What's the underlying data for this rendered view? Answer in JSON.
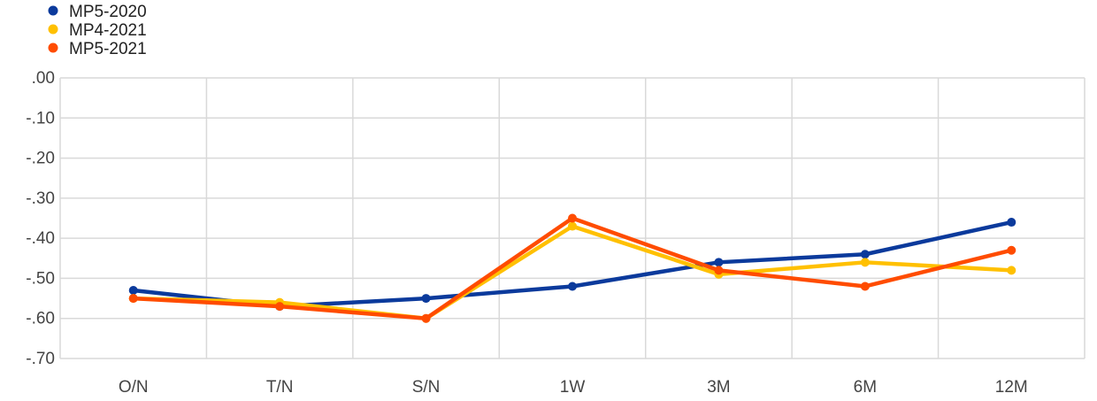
{
  "chart_data": {
    "type": "line",
    "title": "",
    "xlabel": "",
    "ylabel": "",
    "categories": [
      "O/N",
      "T/N",
      "S/N",
      "1W",
      "3M",
      "6M",
      "12M"
    ],
    "y_ticks": [
      ".00",
      "-.10",
      "-.20",
      "-.30",
      "-.40",
      "-.50",
      "-.60",
      "-.70"
    ],
    "ylim": [
      -0.7,
      0.0
    ],
    "grid": true,
    "legend_position": "top-left",
    "series": [
      {
        "name": "MP5-2020",
        "color": "#0b3a9c",
        "values": [
          -0.53,
          -0.57,
          -0.55,
          -0.52,
          -0.46,
          -0.44,
          -0.36
        ]
      },
      {
        "name": "MP4-2021",
        "color": "#ffc000",
        "values": [
          -0.55,
          -0.56,
          -0.6,
          -0.37,
          -0.49,
          -0.46,
          -0.48
        ]
      },
      {
        "name": "MP5-2021",
        "color": "#ff4c00",
        "values": [
          -0.55,
          -0.57,
          -0.6,
          -0.35,
          -0.48,
          -0.52,
          -0.43
        ]
      }
    ]
  }
}
